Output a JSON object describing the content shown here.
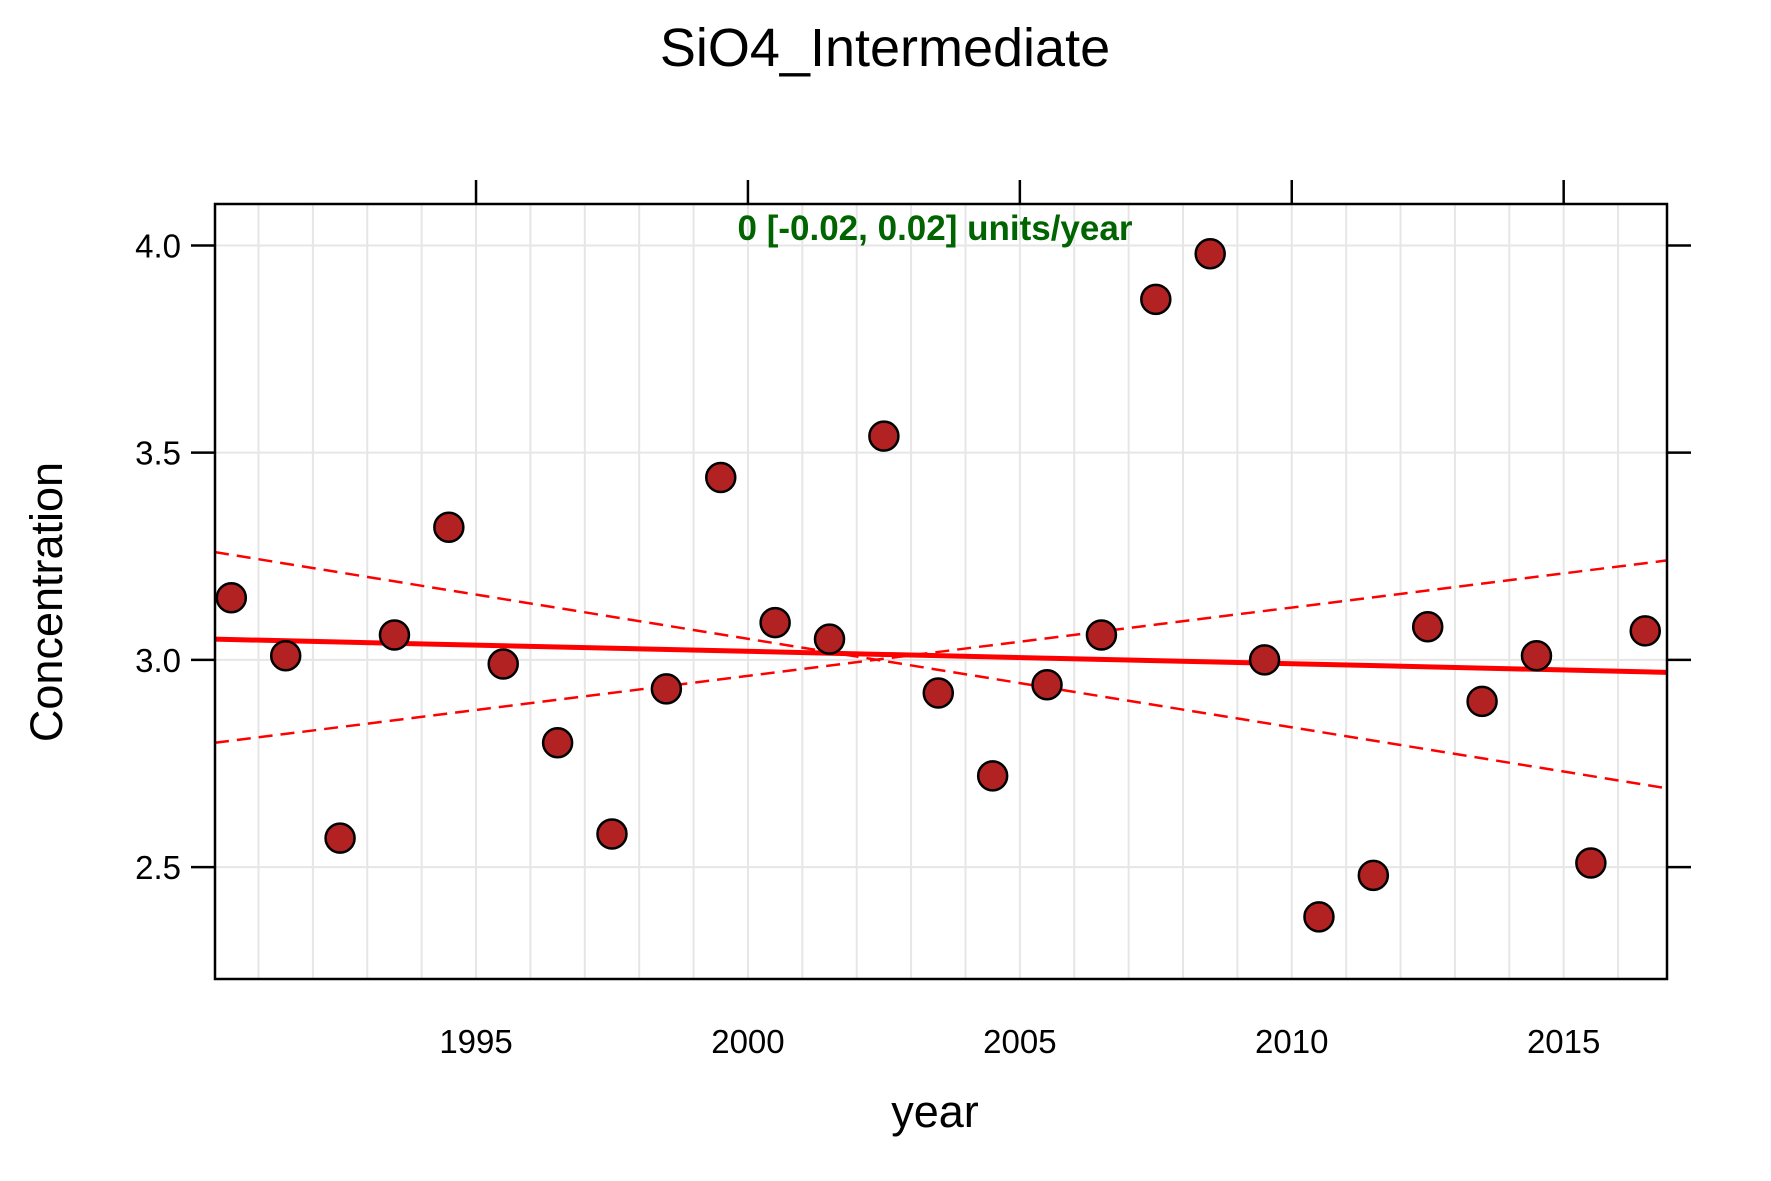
{
  "chart_data": {
    "type": "scatter",
    "title": "SiO4_Intermediate",
    "xlabel": "year",
    "ylabel": "Concentration",
    "xlim": [
      1990.2,
      2016.9
    ],
    "ylim": [
      2.23,
      4.1
    ],
    "x_ticks": [
      1995,
      2000,
      2005,
      2010,
      2015
    ],
    "x_tick_labels": [
      "1995",
      "2000",
      "2005",
      "2010",
      "2015"
    ],
    "y_ticks": [
      2.5,
      3.0,
      3.5,
      4.0
    ],
    "y_tick_labels": [
      "2.5",
      "3.0",
      "3.5",
      "4.0"
    ],
    "x_minor_grid": [
      1991,
      1992,
      1993,
      1994,
      1995,
      1996,
      1997,
      1998,
      1999,
      2000,
      2001,
      2002,
      2003,
      2004,
      2005,
      2006,
      2007,
      2008,
      2009,
      2010,
      2011,
      2012,
      2013,
      2014,
      2015,
      2016
    ],
    "grid": true,
    "annotation": "0 [-0.02, 0.02] units/year",
    "points": {
      "x": [
        1990.5,
        1991.5,
        1992.5,
        1993.5,
        1994.5,
        1995.5,
        1996.5,
        1997.5,
        1998.5,
        1999.5,
        2000.5,
        2001.5,
        2002.5,
        2003.5,
        2004.5,
        2005.5,
        2006.5,
        2007.5,
        2008.5,
        2009.5,
        2010.5,
        2011.5,
        2012.5,
        2013.5,
        2014.5,
        2015.5,
        2016.5
      ],
      "y": [
        3.15,
        3.01,
        2.57,
        3.06,
        3.32,
        2.99,
        2.8,
        2.58,
        2.93,
        3.44,
        3.09,
        3.05,
        3.54,
        2.92,
        2.72,
        2.94,
        3.06,
        3.87,
        3.98,
        3.0,
        2.38,
        2.48,
        3.08,
        2.9,
        3.01,
        2.51,
        3.07
      ]
    },
    "trend_line": {
      "x": [
        1990.2,
        2016.9
      ],
      "y": [
        3.05,
        2.97
      ]
    },
    "confidence_lines": [
      {
        "x": [
          1990.2,
          2016.9
        ],
        "y": [
          3.26,
          2.69
        ]
      },
      {
        "x": [
          1990.2,
          2016.9
        ],
        "y": [
          2.8,
          3.24
        ]
      }
    ],
    "colors": {
      "point_fill": "#B22222",
      "point_stroke": "#000000",
      "trend": "#FF0000",
      "annotation": "#006400",
      "grid": "#E6E6E6",
      "frame": "#000000"
    }
  }
}
